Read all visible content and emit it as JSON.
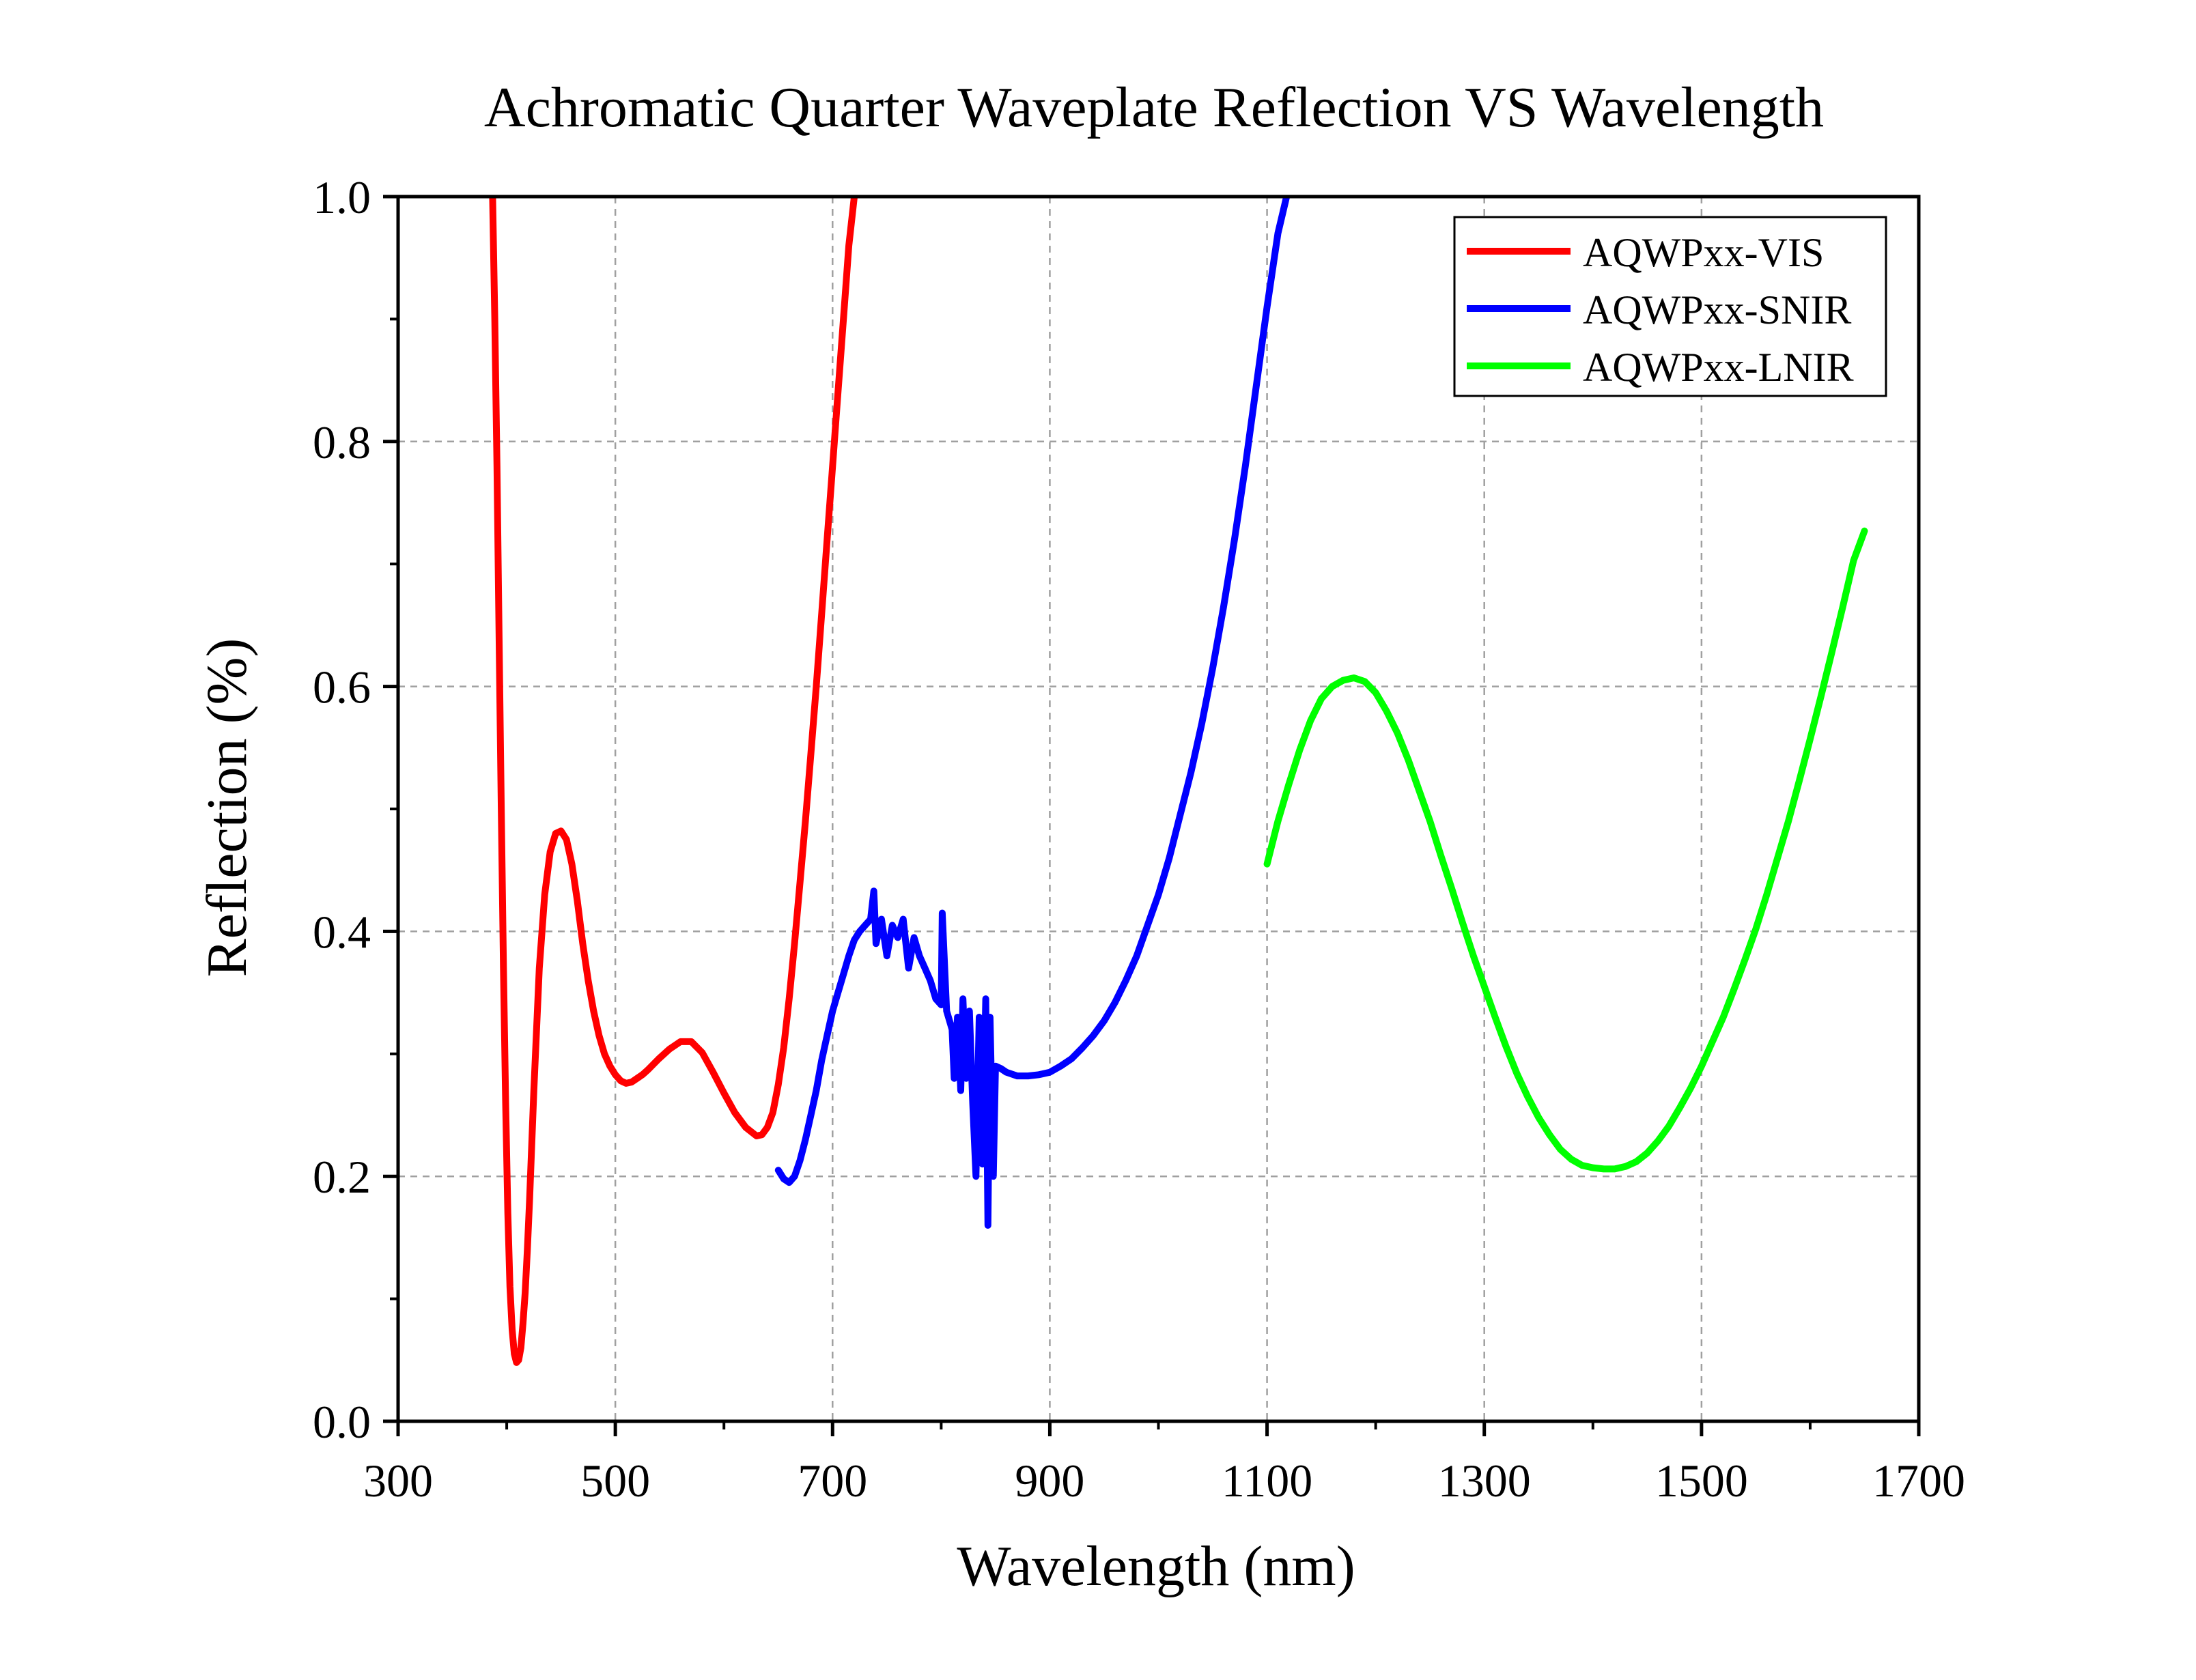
{
  "chart_data": {
    "type": "line",
    "title": "Achromatic Quarter Waveplate Reflection VS Wavelength",
    "xlabel": "Wavelength (nm)",
    "ylabel": "Reflection (%)",
    "xlim": [
      300,
      1700
    ],
    "ylim": [
      0.0,
      1.0
    ],
    "x_ticks": [
      300,
      500,
      700,
      900,
      1100,
      1300,
      1500,
      1700
    ],
    "x_tick_labels": [
      "300",
      "500",
      "700",
      "900",
      "1100",
      "1300",
      "1500",
      "1700"
    ],
    "y_ticks": [
      0.0,
      0.2,
      0.4,
      0.6,
      0.8,
      1.0
    ],
    "y_tick_labels": [
      "0.0",
      "0.2",
      "0.4",
      "0.6",
      "0.8",
      "1.0"
    ],
    "grid": true,
    "legend_position": "top-right",
    "series": [
      {
        "name": "AQWPxx-VIS",
        "color": "#ff0000",
        "x": [
          387,
          389,
          391,
          393,
          395,
          397,
          399,
          401,
          403,
          405,
          407,
          409,
          411,
          413,
          415,
          417,
          419,
          421,
          425,
          430,
          435,
          440,
          445,
          450,
          455,
          460,
          465,
          470,
          475,
          480,
          485,
          490,
          495,
          500,
          505,
          510,
          515,
          520,
          525,
          530,
          540,
          550,
          560,
          570,
          580,
          590,
          600,
          610,
          620,
          630,
          635,
          640,
          645,
          650,
          655,
          660,
          665,
          670,
          675,
          680,
          685,
          690,
          695,
          700,
          705,
          710,
          715,
          720
        ],
        "y": [
          1.0,
          0.9,
          0.78,
          0.64,
          0.5,
          0.37,
          0.26,
          0.17,
          0.11,
          0.075,
          0.055,
          0.048,
          0.05,
          0.06,
          0.08,
          0.105,
          0.14,
          0.18,
          0.27,
          0.37,
          0.43,
          0.465,
          0.48,
          0.482,
          0.475,
          0.455,
          0.425,
          0.39,
          0.36,
          0.335,
          0.315,
          0.3,
          0.29,
          0.283,
          0.278,
          0.276,
          0.277,
          0.28,
          0.283,
          0.287,
          0.296,
          0.304,
          0.31,
          0.31,
          0.301,
          0.285,
          0.268,
          0.252,
          0.24,
          0.233,
          0.234,
          0.24,
          0.252,
          0.275,
          0.305,
          0.345,
          0.39,
          0.44,
          0.49,
          0.545,
          0.6,
          0.66,
          0.72,
          0.78,
          0.84,
          0.9,
          0.96,
          1.0
        ]
      },
      {
        "name": "AQWPxx-SNIR",
        "color": "#0000ff",
        "x": [
          650,
          655,
          660,
          665,
          670,
          675,
          680,
          685,
          690,
          695,
          700,
          705,
          710,
          715,
          720,
          725,
          730,
          735,
          738,
          740,
          745,
          750,
          755,
          760,
          765,
          770,
          775,
          780,
          785,
          790,
          795,
          800,
          801,
          805,
          810,
          812,
          815,
          818,
          820,
          823,
          826,
          829,
          832,
          835,
          838,
          841,
          843,
          845,
          848,
          850,
          855,
          860,
          870,
          880,
          890,
          900,
          910,
          920,
          930,
          940,
          950,
          960,
          970,
          980,
          990,
          1000,
          1010,
          1020,
          1030,
          1040,
          1050,
          1060,
          1070,
          1080,
          1090,
          1100,
          1110,
          1118
        ],
        "y": [
          0.205,
          0.198,
          0.195,
          0.2,
          0.213,
          0.23,
          0.25,
          0.27,
          0.295,
          0.315,
          0.335,
          0.35,
          0.365,
          0.38,
          0.393,
          0.4,
          0.405,
          0.41,
          0.433,
          0.39,
          0.41,
          0.38,
          0.405,
          0.395,
          0.41,
          0.37,
          0.395,
          0.38,
          0.37,
          0.36,
          0.345,
          0.34,
          0.415,
          0.335,
          0.32,
          0.28,
          0.33,
          0.27,
          0.345,
          0.28,
          0.335,
          0.26,
          0.2,
          0.33,
          0.21,
          0.345,
          0.16,
          0.33,
          0.2,
          0.29,
          0.288,
          0.285,
          0.282,
          0.282,
          0.283,
          0.285,
          0.29,
          0.296,
          0.305,
          0.315,
          0.327,
          0.342,
          0.36,
          0.38,
          0.405,
          0.43,
          0.46,
          0.495,
          0.53,
          0.57,
          0.615,
          0.665,
          0.72,
          0.78,
          0.845,
          0.91,
          0.97,
          1.0
        ]
      },
      {
        "name": "AQWPxx-LNIR",
        "color": "#00ff00",
        "x": [
          1100,
          1110,
          1120,
          1130,
          1140,
          1150,
          1160,
          1170,
          1180,
          1190,
          1200,
          1210,
          1220,
          1230,
          1240,
          1250,
          1260,
          1270,
          1280,
          1290,
          1300,
          1310,
          1320,
          1330,
          1340,
          1350,
          1360,
          1370,
          1380,
          1390,
          1400,
          1410,
          1420,
          1430,
          1440,
          1450,
          1460,
          1470,
          1480,
          1490,
          1500,
          1510,
          1520,
          1530,
          1540,
          1550,
          1560,
          1570,
          1580,
          1590,
          1600,
          1610,
          1620,
          1630,
          1640,
          1650
        ],
        "y": [
          0.455,
          0.49,
          0.52,
          0.548,
          0.572,
          0.59,
          0.6,
          0.605,
          0.607,
          0.604,
          0.595,
          0.58,
          0.562,
          0.54,
          0.515,
          0.49,
          0.462,
          0.435,
          0.407,
          0.38,
          0.355,
          0.33,
          0.306,
          0.284,
          0.265,
          0.248,
          0.234,
          0.222,
          0.214,
          0.209,
          0.207,
          0.206,
          0.206,
          0.208,
          0.212,
          0.219,
          0.229,
          0.241,
          0.256,
          0.272,
          0.29,
          0.31,
          0.33,
          0.353,
          0.377,
          0.402,
          0.43,
          0.46,
          0.49,
          0.523,
          0.557,
          0.592,
          0.628,
          0.665,
          0.703,
          0.727
        ]
      }
    ]
  }
}
